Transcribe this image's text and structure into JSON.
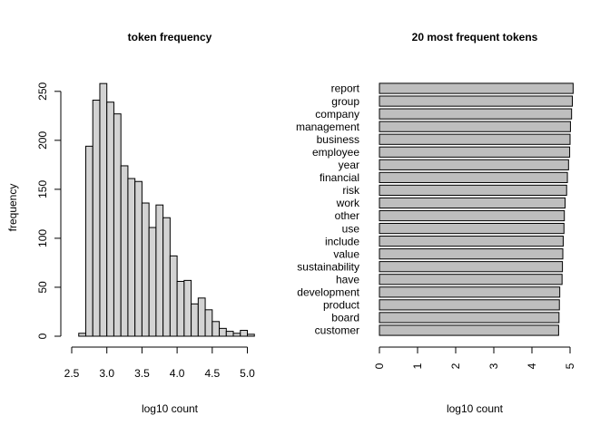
{
  "chart_data": [
    {
      "type": "bar",
      "subtype": "histogram",
      "title": "token frequency",
      "xlabel": "log10 count",
      "ylabel": "frequency",
      "xlim": [
        2.5,
        5.2
      ],
      "ylim": [
        0,
        260
      ],
      "bin_width": 0.1,
      "bin_start": 2.6,
      "xticks": [
        "2.5",
        "3.0",
        "3.5",
        "4.0",
        "4.5",
        "5.0"
      ],
      "yticks": [
        "0",
        "50",
        "100",
        "150",
        "200",
        "250"
      ],
      "bar_fill": "#d3d3d3",
      "values": [
        3,
        194,
        241,
        258,
        239,
        227,
        174,
        161,
        158,
        136,
        111,
        134,
        121,
        82,
        56,
        57,
        33,
        39,
        27,
        15,
        8,
        5,
        3,
        6,
        2
      ]
    },
    {
      "type": "bar",
      "orientation": "horizontal",
      "title": "20 most frequent tokens",
      "xlabel": "log10 count",
      "xlim": [
        0,
        5.2
      ],
      "xticks": [
        "0",
        "1",
        "2",
        "3",
        "4",
        "5"
      ],
      "bar_fill": "#bebebe",
      "categories": [
        "report",
        "group",
        "company",
        "management",
        "business",
        "employee",
        "year",
        "financial",
        "risk",
        "work",
        "other",
        "use",
        "include",
        "value",
        "sustainability",
        "have",
        "development",
        "product",
        "board",
        "customer"
      ],
      "values": [
        5.08,
        5.06,
        5.04,
        5.01,
        5.0,
        4.99,
        4.96,
        4.93,
        4.91,
        4.87,
        4.85,
        4.84,
        4.82,
        4.81,
        4.8,
        4.79,
        4.73,
        4.72,
        4.71,
        4.7
      ]
    }
  ]
}
